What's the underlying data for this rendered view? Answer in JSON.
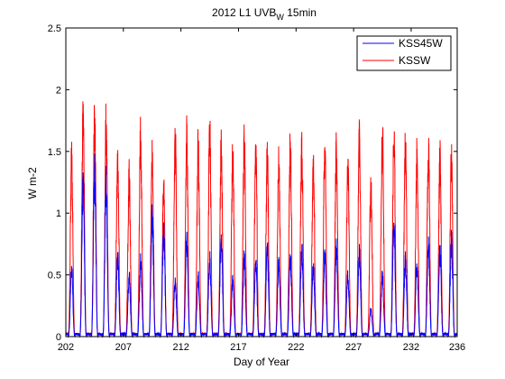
{
  "chart_data": {
    "type": "line",
    "title": {
      "main": "2012 L1 UVB",
      "subscript": "W",
      "suffix": " 15min"
    },
    "xlabel": "Day of Year",
    "ylabel": "W m-2",
    "xlim": [
      202,
      236
    ],
    "ylim": [
      0,
      2.5
    ],
    "xticks": [
      202,
      207,
      212,
      217,
      222,
      227,
      232,
      236
    ],
    "yticks": [
      0,
      0.5,
      1,
      1.5,
      2,
      2.5
    ],
    "ytick_labels": [
      "0",
      "0.5",
      "1",
      "1.5",
      "2",
      "2.5"
    ],
    "grid": false,
    "legend_position": "top-right",
    "series_colors": {
      "KSS45W": "#0000ff",
      "KSSW": "#ff0000"
    },
    "series": [
      {
        "name": "KSS45W",
        "color": "#0000ff",
        "daily_peak_day": [
          202,
          203,
          204,
          205,
          206,
          207,
          208,
          209,
          210,
          211,
          212,
          213,
          214,
          215,
          216,
          217,
          218,
          219,
          220,
          221,
          222,
          223,
          224,
          225,
          226,
          227,
          228,
          229,
          230,
          231,
          232,
          233,
          234,
          235
        ],
        "daily_peak_value": [
          0.62,
          1.38,
          1.52,
          1.42,
          0.72,
          0.56,
          0.7,
          1.1,
          0.95,
          0.5,
          0.88,
          0.55,
          0.72,
          0.92,
          0.52,
          0.72,
          0.68,
          0.8,
          0.65,
          0.7,
          0.8,
          0.65,
          0.76,
          0.8,
          0.55,
          0.75,
          0.25,
          0.55,
          1.05,
          0.7,
          0.65,
          0.86,
          0.78,
          0.88
        ]
      },
      {
        "name": "KSSW",
        "color": "#ff0000",
        "daily_peak_day": [
          202,
          203,
          204,
          205,
          206,
          207,
          208,
          209,
          210,
          211,
          212,
          213,
          214,
          215,
          216,
          217,
          218,
          219,
          220,
          221,
          222,
          223,
          224,
          225,
          226,
          227,
          228,
          229,
          230,
          231,
          232,
          233,
          234,
          235
        ],
        "daily_peak_value": [
          1.62,
          2.02,
          2.0,
          1.93,
          1.65,
          1.45,
          1.85,
          1.7,
          1.35,
          1.85,
          1.8,
          1.73,
          1.85,
          1.73,
          1.65,
          1.8,
          1.75,
          1.67,
          1.58,
          1.72,
          1.7,
          1.58,
          1.72,
          1.67,
          1.6,
          1.8,
          1.35,
          1.82,
          1.85,
          1.73,
          1.65,
          1.72,
          1.6,
          1.67
        ]
      }
    ]
  }
}
